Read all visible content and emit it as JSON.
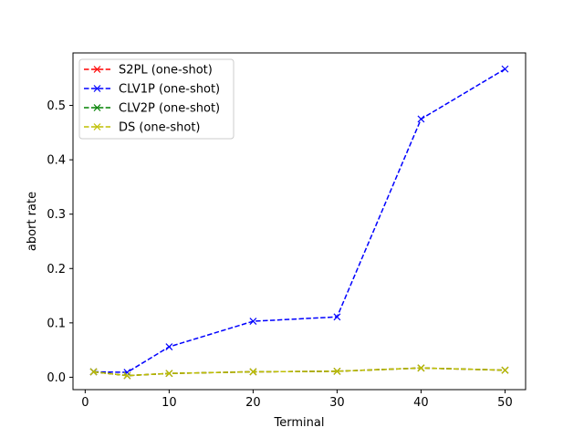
{
  "chart_data": {
    "type": "line",
    "title": "",
    "xlabel": "Terminal",
    "ylabel": "abort rate",
    "x": [
      1,
      5,
      10,
      20,
      30,
      40,
      50
    ],
    "xlim": [
      -1.45,
      52.45
    ],
    "ylim": [
      -0.0228,
      0.5966
    ],
    "xticks": [
      0,
      10,
      20,
      30,
      40,
      50
    ],
    "yticks": [
      0.0,
      0.1,
      0.2,
      0.3,
      0.4,
      0.5
    ],
    "xtick_labels": [
      "0",
      "10",
      "20",
      "30",
      "40",
      "50"
    ],
    "ytick_labels": [
      "0.0",
      "0.1",
      "0.2",
      "0.3",
      "0.4",
      "0.5"
    ],
    "grid": false,
    "legend_position": "top-left",
    "marker": "x",
    "line_style": "dashed",
    "series": [
      {
        "name": "S2PL (one-shot)",
        "color": "#ff0000",
        "values": [
          0.01,
          0.003,
          0.007,
          0.01,
          0.011,
          0.017,
          0.013
        ]
      },
      {
        "name": "CLV1P (one-shot)",
        "color": "#0000ff",
        "values": [
          0.01,
          0.009,
          0.056,
          0.103,
          0.111,
          0.475,
          0.567
        ]
      },
      {
        "name": "CLV2P (one-shot)",
        "color": "#008000",
        "values": [
          0.01,
          0.003,
          0.007,
          0.01,
          0.011,
          0.017,
          0.013
        ]
      },
      {
        "name": "DS (one-shot)",
        "color": "#bfbf00",
        "values": [
          0.01,
          0.003,
          0.007,
          0.01,
          0.011,
          0.017,
          0.013
        ]
      }
    ]
  }
}
